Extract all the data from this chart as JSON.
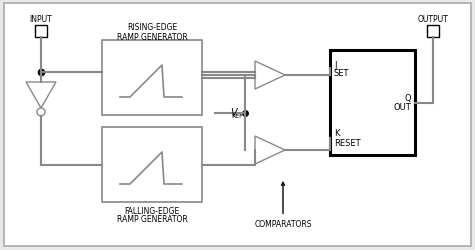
{
  "bg_color": "#e8e8e8",
  "box_color": "#ffffff",
  "line_color": "#888888",
  "dark_line_color": "#000000",
  "input_label": "INPUT",
  "output_label": "OUTPUT",
  "rising_label1": "RISING-EDGE",
  "rising_label2": "RAMP GENERATOR",
  "falling_label1": "FALLING-EDGE",
  "falling_label2": "RAMP GENERATOR",
  "vref_label": "V",
  "vref_sub": "REF",
  "comparators_label": "COMPARATORS",
  "j_label": "J",
  "set_label": "SET",
  "k_label": "K",
  "reset_label": "RESET",
  "q_label": "Q",
  "out_label": "OUT"
}
